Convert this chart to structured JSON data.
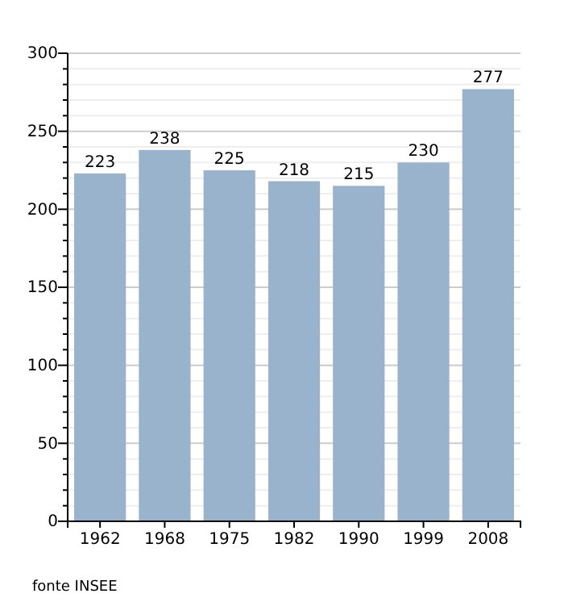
{
  "chart_data": {
    "type": "bar",
    "categories": [
      "1962",
      "1968",
      "1975",
      "1982",
      "1990",
      "1999",
      "2008"
    ],
    "values": [
      223,
      238,
      225,
      218,
      215,
      230,
      277
    ],
    "color": "#9ab3cd",
    "data_labels": true,
    "ylim": [
      0,
      300
    ],
    "yticks": [
      0,
      {
        "value": 10,
        "label": null
      },
      {
        "value": 20,
        "label": null
      },
      {
        "value": 30,
        "label": null
      },
      {
        "value": 40,
        "label": null
      },
      50,
      {
        "value": 60,
        "label": null
      },
      {
        "value": 70,
        "label": null
      },
      {
        "value": 80,
        "label": null
      },
      {
        "value": 90,
        "label": null
      },
      100,
      {
        "value": 110,
        "label": null
      },
      {
        "value": 120,
        "label": null
      },
      {
        "value": 130,
        "label": null
      },
      {
        "value": 140,
        "label": null
      },
      150,
      {
        "value": 160,
        "label": null
      },
      {
        "value": 170,
        "label": null
      },
      {
        "value": 180,
        "label": null
      },
      {
        "value": 190,
        "label": null
      },
      200,
      {
        "value": 210,
        "label": null
      },
      {
        "value": 220,
        "label": null
      },
      {
        "value": 230,
        "label": null
      },
      {
        "value": 240,
        "label": null
      },
      250,
      {
        "value": 260,
        "label": null
      },
      {
        "value": 270,
        "label": null
      },
      {
        "value": 280,
        "label": null
      },
      {
        "value": 290,
        "label": null
      },
      300
    ],
    "grid": true,
    "annotations": [
      "fonte INSEE"
    ]
  }
}
